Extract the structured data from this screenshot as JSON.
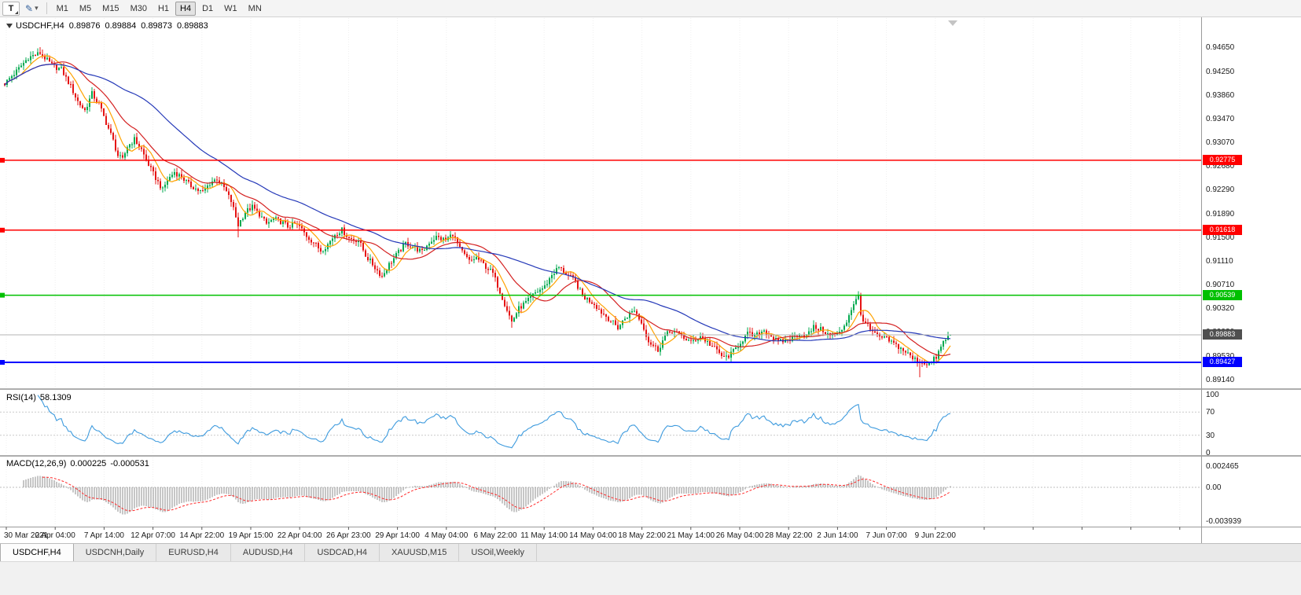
{
  "toolbar": {
    "templates_label": "T",
    "drawing_icon": "✎",
    "dropdown_arrow": "▾",
    "timeframes": [
      "M1",
      "M5",
      "M15",
      "M30",
      "H1",
      "H4",
      "D1",
      "W1",
      "MN"
    ],
    "active_timeframe": "H4"
  },
  "legend": {
    "symbol": "USDCHF,H4",
    "open": "0.89876",
    "high": "0.89884",
    "low": "0.89873",
    "close": "0.89883"
  },
  "indicators": {
    "rsi": {
      "title": "RSI(14)",
      "value": "58.1309",
      "scale_labels": [
        "100",
        "70",
        "30",
        "0"
      ],
      "levels": [
        70,
        30
      ]
    },
    "macd": {
      "title": "MACD(12,26,9)",
      "value_main": "0.000225",
      "value_signal": "-0.000531",
      "scale_labels": [
        "0.002465",
        "0.00",
        "-0.003939"
      ]
    }
  },
  "tabs": {
    "items": [
      "USDCHF,H4",
      "USDCNH,Daily",
      "EURUSD,H4",
      "AUDUSD,H4",
      "USDCAD,H4",
      "XAUUSD,M15",
      "USOil,Weekly"
    ],
    "active": "USDCHF,H4"
  },
  "chart_data": {
    "type": "candlestick",
    "title": "USDCHF,H4",
    "y_tick_labels": [
      "0.94650",
      "0.94250",
      "0.93860",
      "0.93470",
      "0.93070",
      "0.92680",
      "0.92290",
      "0.91890",
      "0.91500",
      "0.91110",
      "0.90710",
      "0.90320",
      "0.89930",
      "0.89530",
      "0.89140"
    ],
    "x_tick_labels": [
      "30 Mar 2021",
      "2 Apr 04:00",
      "7 Apr 14:00",
      "12 Apr 07:00",
      "14 Apr 22:00",
      "19 Apr 15:00",
      "22 Apr 04:00",
      "26 Apr 23:00",
      "29 Apr 14:00",
      "4 May 04:00",
      "6 May 22:00",
      "11 May 14:00",
      "14 May 04:00",
      "18 May 22:00",
      "21 May 14:00",
      "26 May 04:00",
      "28 May 22:00",
      "2 Jun 14:00",
      "7 Jun 07:00",
      "9 Jun 22:00"
    ],
    "y_range": [
      0.89,
      0.9512
    ],
    "levels": [
      {
        "label": "0.92775",
        "value": 0.92775,
        "color": "#FF0000"
      },
      {
        "label": "0.91618",
        "value": 0.91618,
        "color": "#FF0000"
      },
      {
        "label": "0.90539",
        "value": 0.90539,
        "color": "#00C000"
      },
      {
        "label": "0.89427",
        "value": 0.89427,
        "color": "#0000FF"
      }
    ],
    "current_price": {
      "label": "0.89883",
      "value": 0.89883,
      "badge_color": "#4F4F4F"
    },
    "bar_count": 402,
    "close_path_anchors": [
      [
        0,
        0.9405
      ],
      [
        5,
        0.9425
      ],
      [
        10,
        0.9448
      ],
      [
        15,
        0.9455
      ],
      [
        20,
        0.9435
      ],
      [
        24,
        0.9428
      ],
      [
        28,
        0.94
      ],
      [
        31,
        0.9375
      ],
      [
        34,
        0.936
      ],
      [
        37,
        0.9388
      ],
      [
        40,
        0.937
      ],
      [
        43,
        0.934
      ],
      [
        46,
        0.931
      ],
      [
        48,
        0.9285
      ],
      [
        50,
        0.9278
      ],
      [
        52,
        0.93
      ],
      [
        55,
        0.9312
      ],
      [
        58,
        0.9295
      ],
      [
        61,
        0.927
      ],
      [
        64,
        0.9248
      ],
      [
        67,
        0.9228
      ],
      [
        69,
        0.9245
      ],
      [
        72,
        0.9258
      ],
      [
        75,
        0.925
      ],
      [
        78,
        0.9238
      ],
      [
        82,
        0.9228
      ],
      [
        84,
        0.9225
      ],
      [
        87,
        0.924
      ],
      [
        90,
        0.9247
      ],
      [
        93,
        0.9232
      ],
      [
        96,
        0.921
      ],
      [
        99,
        0.917
      ],
      [
        102,
        0.9192
      ],
      [
        105,
        0.92
      ],
      [
        108,
        0.9188
      ],
      [
        111,
        0.9172
      ],
      [
        114,
        0.918
      ],
      [
        117,
        0.9176
      ],
      [
        120,
        0.9168
      ],
      [
        123,
        0.9172
      ],
      [
        125,
        0.9168
      ],
      [
        128,
        0.9152
      ],
      [
        131,
        0.9142
      ],
      [
        134,
        0.9128
      ],
      [
        137,
        0.9138
      ],
      [
        140,
        0.9155
      ],
      [
        143,
        0.9162
      ],
      [
        146,
        0.9148
      ],
      [
        150,
        0.9145
      ],
      [
        153,
        0.912
      ],
      [
        157,
        0.91
      ],
      [
        160,
        0.9085
      ],
      [
        163,
        0.9105
      ],
      [
        167,
        0.9125
      ],
      [
        170,
        0.914
      ],
      [
        173,
        0.9135
      ],
      [
        177,
        0.9125
      ],
      [
        180,
        0.9142
      ],
      [
        183,
        0.915
      ],
      [
        187,
        0.9145
      ],
      [
        190,
        0.9156
      ],
      [
        193,
        0.913
      ],
      [
        197,
        0.911
      ],
      [
        200,
        0.9116
      ],
      [
        203,
        0.9105
      ],
      [
        207,
        0.909
      ],
      [
        208,
        0.908
      ],
      [
        212,
        0.904
      ],
      [
        215,
        0.901
      ],
      [
        218,
        0.9032
      ],
      [
        222,
        0.9045
      ],
      [
        225,
        0.9058
      ],
      [
        229,
        0.9068
      ],
      [
        232,
        0.9088
      ],
      [
        235,
        0.91
      ],
      [
        238,
        0.909
      ],
      [
        242,
        0.9076
      ],
      [
        245,
        0.9052
      ],
      [
        250,
        0.904
      ],
      [
        253,
        0.9026
      ],
      [
        257,
        0.9012
      ],
      [
        260,
        0.9
      ],
      [
        263,
        0.9016
      ],
      [
        267,
        0.903
      ],
      [
        271,
        0.9
      ],
      [
        273,
        0.8978
      ],
      [
        277,
        0.8963
      ],
      [
        280,
        0.8986
      ],
      [
        283,
        0.8996
      ],
      [
        287,
        0.8986
      ],
      [
        291,
        0.8976
      ],
      [
        295,
        0.8986
      ],
      [
        298,
        0.8976
      ],
      [
        302,
        0.8962
      ],
      [
        305,
        0.895
      ],
      [
        308,
        0.8956
      ],
      [
        312,
        0.8976
      ],
      [
        315,
        0.899
      ],
      [
        318,
        0.8986
      ],
      [
        322,
        0.8996
      ],
      [
        325,
        0.8986
      ],
      [
        328,
        0.8976
      ],
      [
        333,
        0.8981
      ],
      [
        337,
        0.8991
      ],
      [
        340,
        0.8986
      ],
      [
        343,
        0.9001
      ],
      [
        347,
        0.8996
      ],
      [
        350,
        0.8986
      ],
      [
        354,
        0.8991
      ],
      [
        357,
        0.9011
      ],
      [
        360,
        0.9041
      ],
      [
        362,
        0.9051
      ],
      [
        363,
        0.9021
      ],
      [
        367,
        0.8996
      ],
      [
        370,
        0.8986
      ],
      [
        374,
        0.8981
      ],
      [
        378,
        0.8971
      ],
      [
        382,
        0.896
      ],
      [
        385,
        0.8949
      ],
      [
        388,
        0.8944
      ],
      [
        392,
        0.894
      ],
      [
        395,
        0.8951
      ],
      [
        398,
        0.8976
      ],
      [
        401,
        0.89883
      ]
    ],
    "wick_events": [
      [
        15,
        "high",
        0.9465
      ],
      [
        99,
        "low",
        0.915
      ],
      [
        215,
        "low",
        0.9
      ],
      [
        362,
        "high",
        0.90539
      ],
      [
        388,
        "low",
        0.8918
      ]
    ],
    "last_candle": {
      "open": 0.89876,
      "high": 0.89884,
      "low": 0.89873,
      "close": 0.89883
    },
    "candle_colors": {
      "up": "#00A94F",
      "down": "#E51414"
    },
    "moving_averages": [
      {
        "period": 8,
        "color": "#FFA200"
      },
      {
        "period": 21,
        "color": "#D42121"
      },
      {
        "period": 55,
        "color": "#2438B8"
      }
    ],
    "rsi_color": "#3E9BDE",
    "macd_colors": {
      "histogram": "#8C8C8C",
      "signal": "#FF2A2A"
    }
  }
}
